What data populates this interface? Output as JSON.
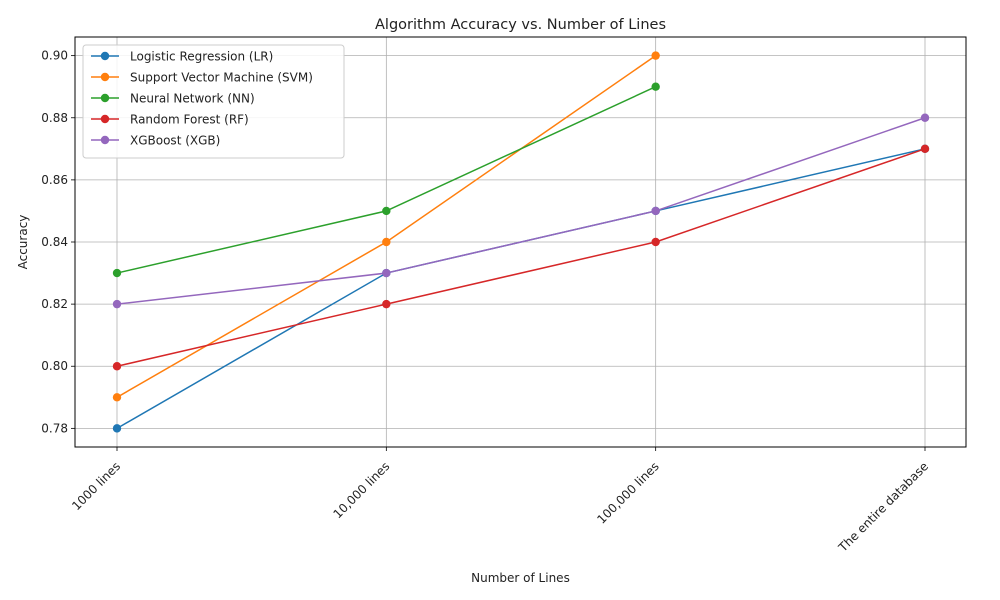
{
  "chart_data": {
    "type": "line",
    "title": "Algorithm Accuracy vs. Number of Lines",
    "xlabel": "Number of Lines",
    "ylabel": "Accuracy",
    "categories": [
      "1000 lines",
      "10,000 lines",
      "100,000 lines",
      "The entire database"
    ],
    "ylim": [
      0.774,
      0.906
    ],
    "yticks": [
      "0.78",
      "0.80",
      "0.82",
      "0.84",
      "0.86",
      "0.88",
      "0.90"
    ],
    "grid": true,
    "legend_position": "top-left",
    "series": [
      {
        "name": "Logistic Regression (LR)",
        "color": "#1f77b4",
        "values": [
          0.78,
          0.83,
          0.85,
          0.87
        ]
      },
      {
        "name": "Support Vector Machine (SVM)",
        "color": "#ff7f0e",
        "values": [
          0.79,
          0.84,
          0.9,
          null
        ]
      },
      {
        "name": "Neural Network (NN)",
        "color": "#2ca02c",
        "values": [
          0.83,
          0.85,
          0.89,
          null
        ]
      },
      {
        "name": "Random Forest (RF)",
        "color": "#d62728",
        "values": [
          0.8,
          0.82,
          0.84,
          0.87
        ]
      },
      {
        "name": "XGBoost (XGB)",
        "color": "#9467bd",
        "values": [
          0.82,
          0.83,
          0.85,
          0.88
        ]
      }
    ]
  }
}
